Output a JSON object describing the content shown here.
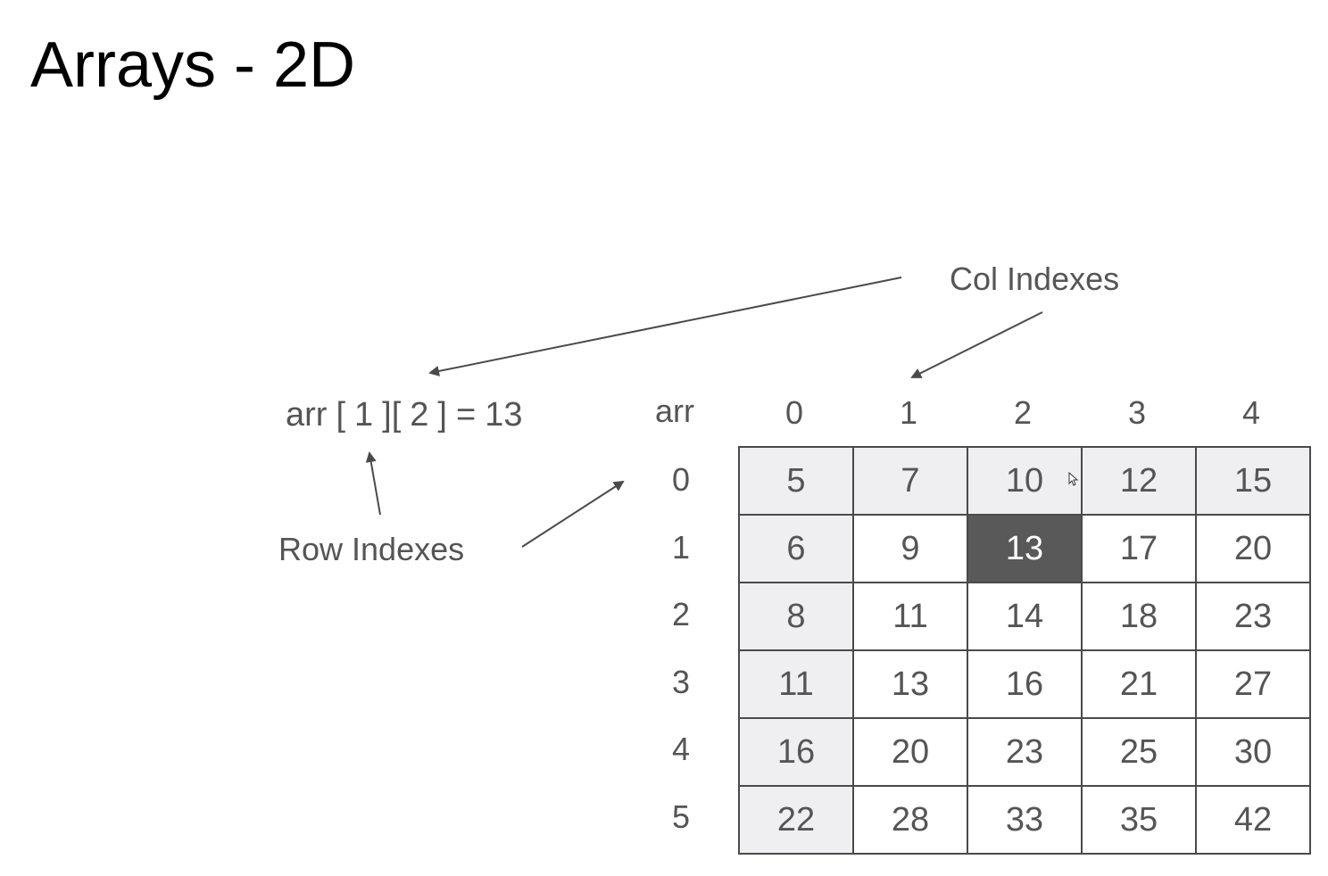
{
  "title": "Arrays - 2D",
  "expression": {
    "name": "arr",
    "open1": "[",
    "row_index": "1",
    "close1": "]",
    "open2": "[",
    "col_index": "2",
    "close2": "]",
    "equals": "=",
    "value": "13"
  },
  "labels": {
    "col_indexes": "Col Indexes",
    "row_indexes": "Row Indexes"
  },
  "array": {
    "name": "arr",
    "col_headers": [
      "0",
      "1",
      "2",
      "3",
      "4"
    ],
    "row_headers": [
      "0",
      "1",
      "2",
      "3",
      "4",
      "5"
    ],
    "rows": [
      [
        "5",
        "7",
        "10",
        "12",
        "15"
      ],
      [
        "6",
        "9",
        "13",
        "17",
        "20"
      ],
      [
        "8",
        "11",
        "14",
        "18",
        "23"
      ],
      [
        "11",
        "13",
        "16",
        "21",
        "27"
      ],
      [
        "16",
        "20",
        "23",
        "25",
        "30"
      ],
      [
        "22",
        "28",
        "33",
        "35",
        "42"
      ]
    ],
    "selected": {
      "row": 1,
      "col": 2
    }
  },
  "colors": {
    "shaded_cell": "#efeef0",
    "selected_cell": "#595959",
    "text": "#555555",
    "title": "#000000"
  }
}
